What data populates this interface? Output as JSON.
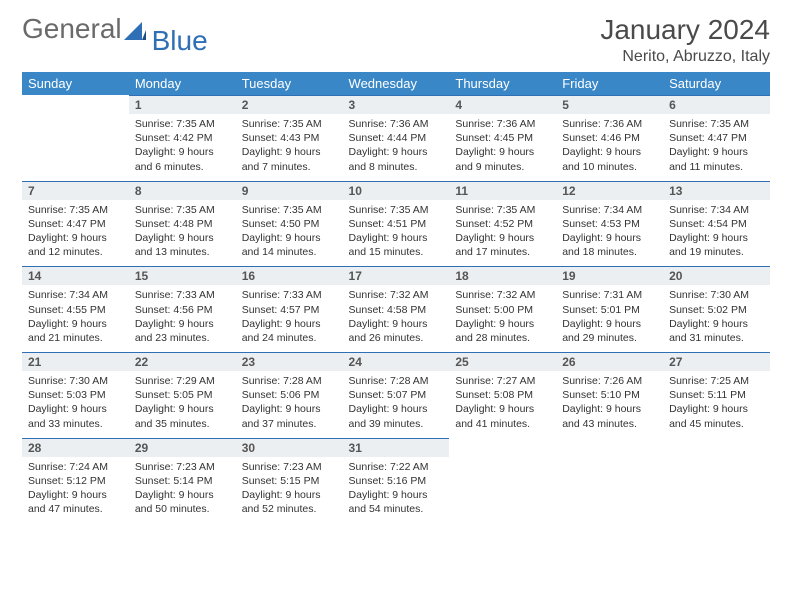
{
  "brand": {
    "word1": "General",
    "word2": "Blue"
  },
  "title": "January 2024",
  "location": "Nerito, Abruzzo, Italy",
  "colors": {
    "header_bg": "#3a87c7",
    "header_fg": "#ffffff",
    "daynum_bg": "#eceff1",
    "daynum_border": "#2f6fb5",
    "text": "#333333",
    "title": "#4a4a4a",
    "logo_grey": "#6a6a6a",
    "logo_blue": "#2f6fb5"
  },
  "typography": {
    "title_fontsize": 28,
    "location_fontsize": 16,
    "header_fontsize": 13,
    "daynum_fontsize": 12,
    "body_fontsize": 10.5,
    "font_family": "Arial"
  },
  "weekdays": [
    "Sunday",
    "Monday",
    "Tuesday",
    "Wednesday",
    "Thursday",
    "Friday",
    "Saturday"
  ],
  "start_offset": 1,
  "days": [
    {
      "n": 1,
      "sunrise": "7:35 AM",
      "sunset": "4:42 PM",
      "daylight": "9 hours and 6 minutes."
    },
    {
      "n": 2,
      "sunrise": "7:35 AM",
      "sunset": "4:43 PM",
      "daylight": "9 hours and 7 minutes."
    },
    {
      "n": 3,
      "sunrise": "7:36 AM",
      "sunset": "4:44 PM",
      "daylight": "9 hours and 8 minutes."
    },
    {
      "n": 4,
      "sunrise": "7:36 AM",
      "sunset": "4:45 PM",
      "daylight": "9 hours and 9 minutes."
    },
    {
      "n": 5,
      "sunrise": "7:36 AM",
      "sunset": "4:46 PM",
      "daylight": "9 hours and 10 minutes."
    },
    {
      "n": 6,
      "sunrise": "7:35 AM",
      "sunset": "4:47 PM",
      "daylight": "9 hours and 11 minutes."
    },
    {
      "n": 7,
      "sunrise": "7:35 AM",
      "sunset": "4:47 PM",
      "daylight": "9 hours and 12 minutes."
    },
    {
      "n": 8,
      "sunrise": "7:35 AM",
      "sunset": "4:48 PM",
      "daylight": "9 hours and 13 minutes."
    },
    {
      "n": 9,
      "sunrise": "7:35 AM",
      "sunset": "4:50 PM",
      "daylight": "9 hours and 14 minutes."
    },
    {
      "n": 10,
      "sunrise": "7:35 AM",
      "sunset": "4:51 PM",
      "daylight": "9 hours and 15 minutes."
    },
    {
      "n": 11,
      "sunrise": "7:35 AM",
      "sunset": "4:52 PM",
      "daylight": "9 hours and 17 minutes."
    },
    {
      "n": 12,
      "sunrise": "7:34 AM",
      "sunset": "4:53 PM",
      "daylight": "9 hours and 18 minutes."
    },
    {
      "n": 13,
      "sunrise": "7:34 AM",
      "sunset": "4:54 PM",
      "daylight": "9 hours and 19 minutes."
    },
    {
      "n": 14,
      "sunrise": "7:34 AM",
      "sunset": "4:55 PM",
      "daylight": "9 hours and 21 minutes."
    },
    {
      "n": 15,
      "sunrise": "7:33 AM",
      "sunset": "4:56 PM",
      "daylight": "9 hours and 23 minutes."
    },
    {
      "n": 16,
      "sunrise": "7:33 AM",
      "sunset": "4:57 PM",
      "daylight": "9 hours and 24 minutes."
    },
    {
      "n": 17,
      "sunrise": "7:32 AM",
      "sunset": "4:58 PM",
      "daylight": "9 hours and 26 minutes."
    },
    {
      "n": 18,
      "sunrise": "7:32 AM",
      "sunset": "5:00 PM",
      "daylight": "9 hours and 28 minutes."
    },
    {
      "n": 19,
      "sunrise": "7:31 AM",
      "sunset": "5:01 PM",
      "daylight": "9 hours and 29 minutes."
    },
    {
      "n": 20,
      "sunrise": "7:30 AM",
      "sunset": "5:02 PM",
      "daylight": "9 hours and 31 minutes."
    },
    {
      "n": 21,
      "sunrise": "7:30 AM",
      "sunset": "5:03 PM",
      "daylight": "9 hours and 33 minutes."
    },
    {
      "n": 22,
      "sunrise": "7:29 AM",
      "sunset": "5:05 PM",
      "daylight": "9 hours and 35 minutes."
    },
    {
      "n": 23,
      "sunrise": "7:28 AM",
      "sunset": "5:06 PM",
      "daylight": "9 hours and 37 minutes."
    },
    {
      "n": 24,
      "sunrise": "7:28 AM",
      "sunset": "5:07 PM",
      "daylight": "9 hours and 39 minutes."
    },
    {
      "n": 25,
      "sunrise": "7:27 AM",
      "sunset": "5:08 PM",
      "daylight": "9 hours and 41 minutes."
    },
    {
      "n": 26,
      "sunrise": "7:26 AM",
      "sunset": "5:10 PM",
      "daylight": "9 hours and 43 minutes."
    },
    {
      "n": 27,
      "sunrise": "7:25 AM",
      "sunset": "5:11 PM",
      "daylight": "9 hours and 45 minutes."
    },
    {
      "n": 28,
      "sunrise": "7:24 AM",
      "sunset": "5:12 PM",
      "daylight": "9 hours and 47 minutes."
    },
    {
      "n": 29,
      "sunrise": "7:23 AM",
      "sunset": "5:14 PM",
      "daylight": "9 hours and 50 minutes."
    },
    {
      "n": 30,
      "sunrise": "7:23 AM",
      "sunset": "5:15 PM",
      "daylight": "9 hours and 52 minutes."
    },
    {
      "n": 31,
      "sunrise": "7:22 AM",
      "sunset": "5:16 PM",
      "daylight": "9 hours and 54 minutes."
    }
  ],
  "labels": {
    "sunrise": "Sunrise:",
    "sunset": "Sunset:",
    "daylight": "Daylight:"
  }
}
